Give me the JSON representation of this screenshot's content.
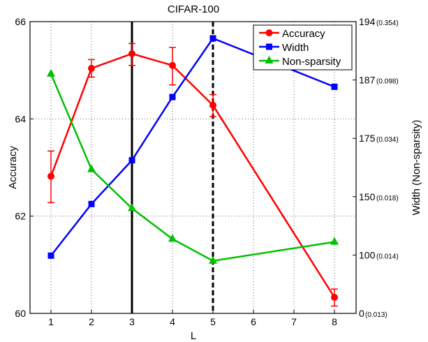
{
  "chart_data": {
    "type": "line",
    "title": "CIFAR-100",
    "xlabel": "L",
    "ylabel": "Accuracy",
    "y2label": "Width (Non-sparsity)",
    "x_ticks": [
      "1",
      "2",
      "3",
      "4",
      "5",
      "6",
      "7",
      "8"
    ],
    "ylim": [
      60,
      66
    ],
    "y_ticks": [
      "60",
      "62",
      "64",
      "66"
    ],
    "y2_ticks": [
      {
        "width": "0",
        "nonsparsity": "(0.013)"
      },
      {
        "width": "100",
        "nonsparsity": "(0.014)"
      },
      {
        "width": "150",
        "nonsparsity": "(0.018)"
      },
      {
        "width": "175",
        "nonsparsity": "(0.034)"
      },
      {
        "width": "187",
        "nonsparsity": "(0.098)"
      },
      {
        "width": "194",
        "nonsparsity": "(0.354)"
      }
    ],
    "y2_width_scale": [
      0,
      100,
      150,
      175,
      187,
      194
    ],
    "y2_nonsparsity_scale": [
      0.013,
      0.014,
      0.018,
      0.034,
      0.098,
      0.354
    ],
    "grid": true,
    "legend_position": "top-right",
    "vlines": [
      {
        "x": 3,
        "style": "solid"
      },
      {
        "x": 5,
        "style": "dashed"
      }
    ],
    "x": [
      1,
      2,
      3,
      4,
      5,
      8
    ],
    "series": [
      {
        "name": "Accuracy",
        "axis": "left",
        "color": "#ff0000",
        "marker": "circle",
        "values": [
          62.82,
          65.04,
          65.34,
          65.1,
          64.28,
          60.33
        ],
        "err_low": [
          62.28,
          64.86,
          65.1,
          64.7,
          64.05,
          60.15
        ],
        "err_high": [
          63.34,
          65.22,
          65.55,
          65.47,
          64.5,
          60.5
        ]
      },
      {
        "name": "Width",
        "axis": "right-width",
        "color": "#0000ff",
        "marker": "square",
        "values": [
          99,
          143.7,
          165.6,
          183.5,
          192,
          185.6
        ]
      },
      {
        "name": "Non-sparsity",
        "axis": "right-nonsparsity",
        "color": "#00c000",
        "marker": "triangle",
        "values": [
          0.125,
          0.0255,
          0.0172,
          0.0151,
          0.0139,
          0.0149
        ]
      }
    ]
  }
}
